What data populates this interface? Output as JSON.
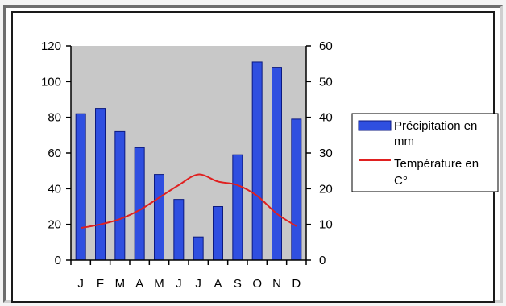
{
  "chart_data": {
    "type": "bar-line",
    "categories": [
      "J",
      "F",
      "M",
      "A",
      "M",
      "J",
      "J",
      "A",
      "S",
      "O",
      "N",
      "D"
    ],
    "series": [
      {
        "name": "Précipitation en mm",
        "kind": "bar",
        "axis": "left",
        "color": "#2f4fe0",
        "values": [
          82,
          85,
          72,
          63,
          48,
          34,
          13,
          30,
          59,
          111,
          108,
          79
        ]
      },
      {
        "name": "Température en C°",
        "kind": "line",
        "axis": "right",
        "color": "#e02020",
        "values": [
          9,
          10,
          11.5,
          14,
          17.5,
          21,
          24,
          22,
          21,
          18,
          13,
          9.5
        ]
      }
    ],
    "y_left": {
      "min": 0,
      "max": 120,
      "step": 20,
      "ticks": [
        "0",
        "20",
        "40",
        "60",
        "80",
        "100",
        "120"
      ]
    },
    "y_right": {
      "min": 0,
      "max": 60,
      "step": 10,
      "ticks": [
        "0",
        "10",
        "20",
        "30",
        "40",
        "50",
        "60"
      ]
    },
    "plot_background": "#c8c8c8",
    "grid": false,
    "legend": {
      "placement": "right",
      "lines": [
        [
          "Précipitation en",
          "mm"
        ],
        [
          "Température en",
          "C°"
        ]
      ]
    }
  }
}
